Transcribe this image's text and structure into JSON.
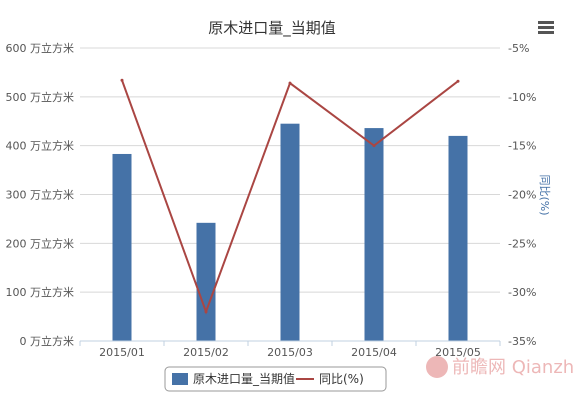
{
  "menu_icon": "hamburger-menu-icon",
  "chart_data": {
    "type": "bar+line",
    "title": "原木进口量_当期值",
    "categories": [
      "2015/01",
      "2015/02",
      "2015/03",
      "2015/04",
      "2015/05"
    ],
    "series": [
      {
        "name": "原木进口量_当期值",
        "type": "bar",
        "axis": "left",
        "color": "#4572a7",
        "values": [
          383,
          242,
          445,
          436,
          420
        ]
      },
      {
        "name": "同比(%)",
        "type": "line",
        "axis": "right",
        "color": "#aa4643",
        "values": [
          -8.3,
          -32.0,
          -8.6,
          -15.0,
          -8.4
        ]
      }
    ],
    "y_left": {
      "ylim": [
        0,
        600
      ],
      "ticks": [
        0,
        100,
        200,
        300,
        400,
        500,
        600
      ],
      "tick_labels": [
        "0 万立方米",
        "100 万立方米",
        "200 万立方米",
        "300 万立方米",
        "400 万立方米",
        "500 万立方米",
        "600 万立方米"
      ]
    },
    "y_right": {
      "label": "同比(%)",
      "ylim": [
        -35,
        -5
      ],
      "ticks": [
        -35,
        -30,
        -25,
        -20,
        -15,
        -10,
        -5
      ],
      "tick_labels": [
        "-35%",
        "-30%",
        "-25%",
        "-20%",
        "-15%",
        "-10%",
        "-5%"
      ]
    },
    "grid": true,
    "legend_position": "bottom-center",
    "watermark": "前瞻网 Qianzhan.com"
  }
}
